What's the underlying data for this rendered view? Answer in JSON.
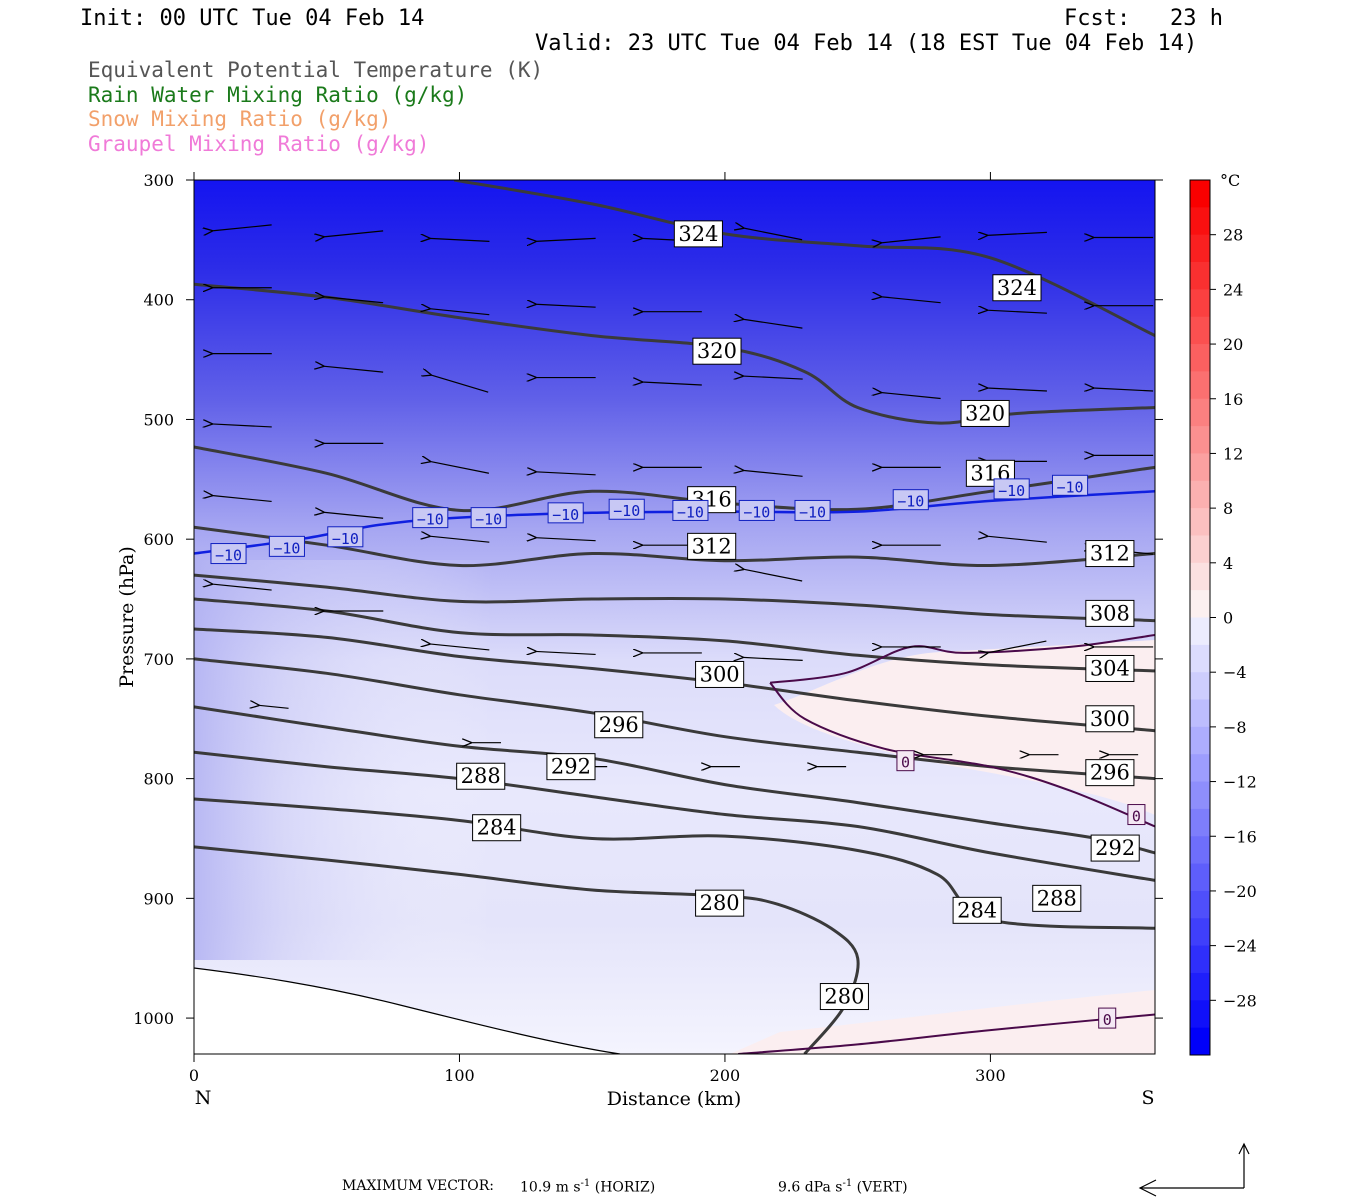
{
  "header": {
    "init": "Init: 00 UTC Tue 04 Feb 14",
    "fcst": "Fcst:   23 h",
    "valid": "Valid: 23 UTC Tue 04 Feb 14 (18 EST Tue 04 Feb 14)"
  },
  "legend": {
    "items": [
      {
        "label": "Equivalent Potential Temperature (K)",
        "color": "#555555"
      },
      {
        "label": "Rain Water Mixing Ratio (g/kg)",
        "color": "#1a7a1a"
      },
      {
        "label": "Snow Mixing Ratio (g/kg)",
        "color": "#f2a06a"
      },
      {
        "label": "Graupel Mixing Ratio (g/kg)",
        "color": "#f07ad8"
      }
    ]
  },
  "footer": {
    "max_vector_label": "MAXIMUM VECTOR:",
    "horiz_value": "10.9 m s",
    "horiz_unit": "-1",
    "horiz_tag": "(HORIZ)",
    "vert_value": "9.6 dPa s",
    "vert_unit": "-1",
    "vert_tag": "(VERT)"
  },
  "chart_data": {
    "type": "cross-section",
    "xlabel": "Distance (km)",
    "ylabel": "Pressure (hPa)",
    "xlim": [
      0,
      362
    ],
    "ylim": [
      1030,
      300
    ],
    "xticks": [
      0,
      100,
      200,
      300
    ],
    "yticks": [
      300,
      400,
      500,
      600,
      700,
      800,
      900,
      1000
    ],
    "x_end_labels": {
      "left": "N",
      "right": "S"
    },
    "colorbar": {
      "unit": "°C",
      "ticks": [
        28,
        24,
        20,
        16,
        12,
        8,
        4,
        0,
        -4,
        -8,
        -12,
        -16,
        -20,
        -24,
        -28
      ],
      "range": [
        -32,
        32
      ]
    },
    "theta_e_contours": [
      {
        "value": 324,
        "points": [
          [
            98,
            300
          ],
          [
            150,
            320
          ],
          [
            200,
            345
          ],
          [
            250,
            355
          ],
          [
            300,
            365
          ],
          [
            362,
            430
          ]
        ],
        "labels": [
          [
            190,
            345
          ],
          [
            310,
            390
          ]
        ]
      },
      {
        "value": 320,
        "points": [
          [
            0,
            387
          ],
          [
            50,
            398
          ],
          [
            100,
            415
          ],
          [
            150,
            430
          ],
          [
            200,
            440
          ],
          [
            230,
            460
          ],
          [
            250,
            490
          ],
          [
            280,
            503
          ],
          [
            310,
            495
          ],
          [
            362,
            490
          ]
        ],
        "labels": [
          [
            197,
            443
          ],
          [
            298,
            495
          ]
        ]
      },
      {
        "value": 316,
        "points": [
          [
            0,
            523
          ],
          [
            50,
            545
          ],
          [
            100,
            576
          ],
          [
            150,
            560
          ],
          [
            200,
            570
          ],
          [
            250,
            575
          ],
          [
            300,
            560
          ],
          [
            362,
            540
          ]
        ],
        "labels": [
          [
            195,
            567
          ],
          [
            300,
            545
          ]
        ]
      },
      {
        "value": 312,
        "points": [
          [
            0,
            590
          ],
          [
            50,
            605
          ],
          [
            100,
            622
          ],
          [
            150,
            612
          ],
          [
            200,
            618
          ],
          [
            250,
            615
          ],
          [
            300,
            622
          ],
          [
            362,
            612
          ]
        ],
        "labels": [
          [
            195,
            606
          ],
          [
            345,
            612
          ]
        ]
      },
      {
        "value": 308,
        "points": [
          [
            0,
            630
          ],
          [
            50,
            640
          ],
          [
            100,
            652
          ],
          [
            150,
            650
          ],
          [
            200,
            650
          ],
          [
            250,
            655
          ],
          [
            300,
            663
          ],
          [
            362,
            668
          ]
        ],
        "labels": [
          [
            345,
            662
          ]
        ]
      },
      {
        "value": 304,
        "points": [
          [
            0,
            650
          ],
          [
            50,
            660
          ],
          [
            100,
            678
          ],
          [
            150,
            680
          ],
          [
            200,
            685
          ],
          [
            250,
            697
          ],
          [
            300,
            705
          ],
          [
            362,
            710
          ]
        ],
        "labels": [
          [
            345,
            708
          ]
        ]
      },
      {
        "value": 300,
        "points": [
          [
            0,
            675
          ],
          [
            50,
            682
          ],
          [
            100,
            698
          ],
          [
            150,
            708
          ],
          [
            200,
            720
          ],
          [
            250,
            735
          ],
          [
            300,
            748
          ],
          [
            362,
            760
          ]
        ],
        "labels": [
          [
            198,
            713
          ],
          [
            345,
            750
          ]
        ]
      },
      {
        "value": 296,
        "points": [
          [
            0,
            700
          ],
          [
            50,
            712
          ],
          [
            100,
            730
          ],
          [
            150,
            745
          ],
          [
            200,
            765
          ],
          [
            250,
            778
          ],
          [
            300,
            790
          ],
          [
            362,
            800
          ]
        ],
        "labels": [
          [
            160,
            755
          ],
          [
            345,
            795
          ]
        ]
      },
      {
        "value": 292,
        "points": [
          [
            0,
            740
          ],
          [
            50,
            757
          ],
          [
            100,
            773
          ],
          [
            150,
            783
          ],
          [
            200,
            805
          ],
          [
            250,
            820
          ],
          [
            300,
            837
          ],
          [
            340,
            850
          ],
          [
            362,
            862
          ]
        ],
        "labels": [
          [
            142,
            790
          ],
          [
            347,
            858
          ]
        ]
      },
      {
        "value": 288,
        "points": [
          [
            0,
            778
          ],
          [
            50,
            790
          ],
          [
            100,
            800
          ],
          [
            150,
            815
          ],
          [
            200,
            830
          ],
          [
            250,
            840
          ],
          [
            300,
            862
          ],
          [
            362,
            885
          ]
        ],
        "labels": [
          [
            108,
            798
          ],
          [
            325,
            900
          ]
        ]
      },
      {
        "value": 284,
        "points": [
          [
            0,
            817
          ],
          [
            50,
            825
          ],
          [
            100,
            835
          ],
          [
            150,
            850
          ],
          [
            200,
            848
          ],
          [
            250,
            860
          ],
          [
            280,
            880
          ],
          [
            300,
            918
          ],
          [
            362,
            925
          ]
        ],
        "labels": [
          [
            114,
            841
          ],
          [
            295,
            910
          ]
        ]
      },
      {
        "value": 280,
        "points": [
          [
            0,
            857
          ],
          [
            50,
            868
          ],
          [
            100,
            880
          ],
          [
            150,
            893
          ],
          [
            200,
            898
          ],
          [
            220,
            905
          ],
          [
            240,
            925
          ],
          [
            250,
            950
          ],
          [
            245,
            990
          ],
          [
            230,
            1030
          ]
        ],
        "labels": [
          [
            198,
            904
          ],
          [
            245,
            982
          ]
        ]
      }
    ],
    "temp_zero_contours": [
      {
        "points": [
          [
            217,
            720
          ],
          [
            245,
            712
          ],
          [
            270,
            690
          ],
          [
            290,
            695
          ],
          [
            330,
            690
          ],
          [
            362,
            680
          ]
        ],
        "labels": []
      },
      {
        "points": [
          [
            217,
            720
          ],
          [
            230,
            750
          ],
          [
            260,
            775
          ],
          [
            300,
            790
          ],
          [
            330,
            810
          ],
          [
            362,
            840
          ]
        ],
        "labels": [
          [
            268,
            785
          ],
          [
            355,
            830
          ]
        ]
      },
      {
        "points": [
          [
            205,
            1030
          ],
          [
            250,
            1022
          ],
          [
            300,
            1010
          ],
          [
            362,
            997
          ]
        ],
        "labels": [
          [
            344,
            1000
          ]
        ]
      }
    ],
    "temp_minus10_contour": {
      "points": [
        [
          0,
          612
        ],
        [
          40,
          600
        ],
        [
          70,
          588
        ],
        [
          100,
          582
        ],
        [
          150,
          578
        ],
        [
          200,
          577
        ],
        [
          250,
          577
        ],
        [
          300,
          568
        ],
        [
          362,
          560
        ]
      ],
      "labels": [
        [
          13,
          612
        ],
        [
          35,
          606
        ],
        [
          57,
          598
        ],
        [
          89,
          582
        ],
        [
          111,
          582
        ],
        [
          140,
          578
        ],
        [
          163,
          575
        ],
        [
          187,
          576
        ],
        [
          212,
          576
        ],
        [
          233,
          576
        ],
        [
          270,
          567
        ],
        [
          308,
          558
        ],
        [
          330,
          555
        ]
      ]
    },
    "vectors": [
      [
        18,
        340,
        1,
        -0.1
      ],
      [
        60,
        345,
        1,
        -0.1
      ],
      [
        100,
        350,
        1,
        0.05
      ],
      [
        140,
        350,
        1,
        -0.05
      ],
      [
        180,
        350,
        1,
        0.05
      ],
      [
        218,
        345,
        1,
        0.2
      ],
      [
        270,
        350,
        1,
        -0.1
      ],
      [
        310,
        345,
        1,
        -0.05
      ],
      [
        350,
        348,
        1,
        0
      ],
      [
        18,
        390,
        1,
        0
      ],
      [
        60,
        400,
        1,
        0.1
      ],
      [
        100,
        410,
        1,
        0.1
      ],
      [
        140,
        405,
        1,
        0.05
      ],
      [
        180,
        410,
        1,
        0
      ],
      [
        218,
        420,
        1,
        0.15
      ],
      [
        270,
        400,
        1,
        0.1
      ],
      [
        310,
        410,
        1,
        0.05
      ],
      [
        350,
        405,
        1,
        0
      ],
      [
        18,
        445,
        1,
        0
      ],
      [
        60,
        458,
        1,
        0.1
      ],
      [
        100,
        470,
        1,
        0.3
      ],
      [
        140,
        465,
        1,
        0
      ],
      [
        180,
        470,
        1,
        0.05
      ],
      [
        218,
        465,
        1,
        0.05
      ],
      [
        270,
        480,
        1,
        0.1
      ],
      [
        310,
        475,
        1,
        0.05
      ],
      [
        350,
        475,
        1,
        0.05
      ],
      [
        18,
        505,
        1,
        0.05
      ],
      [
        60,
        520,
        1,
        0
      ],
      [
        100,
        540,
        1,
        0.2
      ],
      [
        140,
        545,
        1,
        0.05
      ],
      [
        180,
        540,
        1,
        0
      ],
      [
        218,
        545,
        1,
        0.1
      ],
      [
        270,
        540,
        1,
        0
      ],
      [
        310,
        535,
        1,
        0
      ],
      [
        350,
        530,
        1,
        0
      ],
      [
        18,
        566,
        1,
        0.1
      ],
      [
        60,
        580,
        1,
        0.1
      ],
      [
        100,
        600,
        1,
        0.1
      ],
      [
        140,
        600,
        1,
        0.05
      ],
      [
        180,
        605,
        1,
        0
      ],
      [
        218,
        630,
        1,
        0.2
      ],
      [
        270,
        605,
        1,
        0
      ],
      [
        310,
        600,
        1,
        0.1
      ],
      [
        350,
        610,
        1,
        0.1
      ],
      [
        18,
        640,
        1,
        0.1
      ],
      [
        60,
        660,
        1,
        0
      ],
      [
        100,
        690,
        1,
        0.1
      ],
      [
        140,
        695,
        1,
        0.05
      ],
      [
        180,
        695,
        1,
        0
      ],
      [
        218,
        700,
        1,
        0.05
      ],
      [
        270,
        690,
        1,
        0
      ],
      [
        310,
        690,
        1,
        -0.2
      ],
      [
        350,
        690,
        1,
        0
      ],
      [
        30,
        740,
        0.5,
        0.1
      ],
      [
        110,
        770,
        0.5,
        0
      ],
      [
        150,
        790,
        0.5,
        0
      ],
      [
        200,
        790,
        0.5,
        0
      ],
      [
        240,
        790,
        0.5,
        0
      ],
      [
        280,
        780,
        0.5,
        0
      ],
      [
        320,
        780,
        0.5,
        0
      ],
      [
        350,
        780,
        0.5,
        0
      ]
    ]
  }
}
